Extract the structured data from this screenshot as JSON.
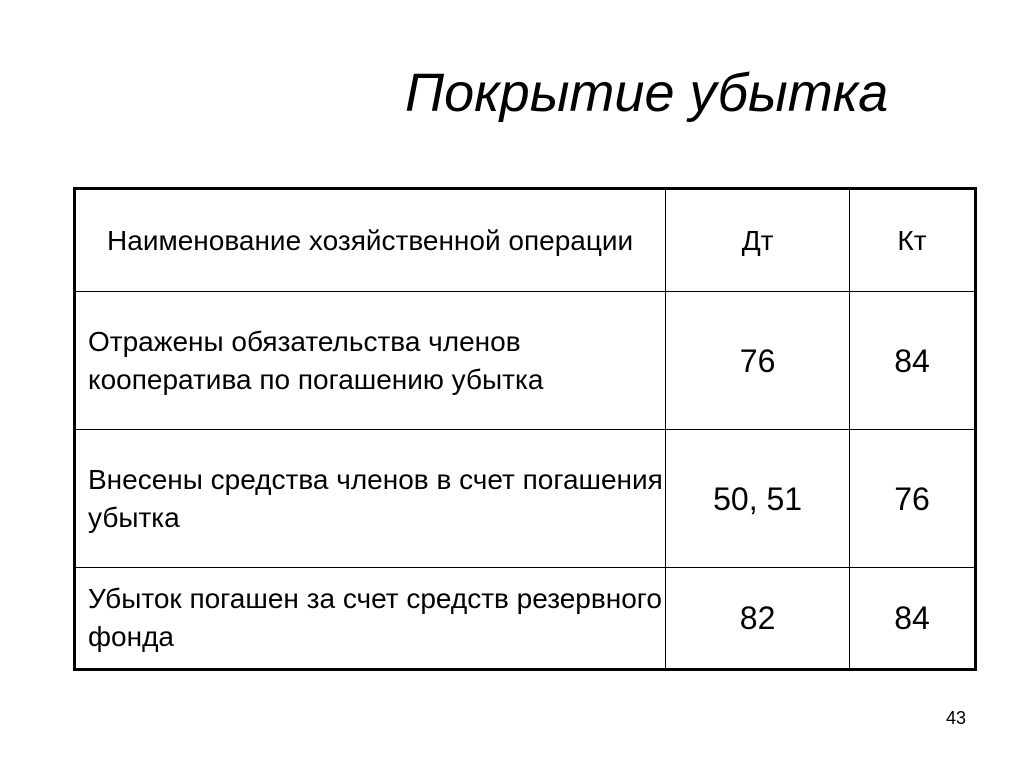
{
  "title": "Покрытие убытка",
  "table": {
    "headers": [
      "Наименование хозяйственной операции",
      "Дт",
      "Кт"
    ],
    "rows": [
      {
        "operation": "Отражены обязательства членов кооператива по погашению убытка",
        "debit": "76",
        "credit": "84"
      },
      {
        "operation": "Внесены средства членов в счет погашения убытка",
        "debit": "50, 51",
        "credit": "76"
      },
      {
        "operation": "Убыток погашен за счет средств резервного фонда",
        "debit": "82",
        "credit": "84"
      }
    ]
  },
  "page_number": "43"
}
